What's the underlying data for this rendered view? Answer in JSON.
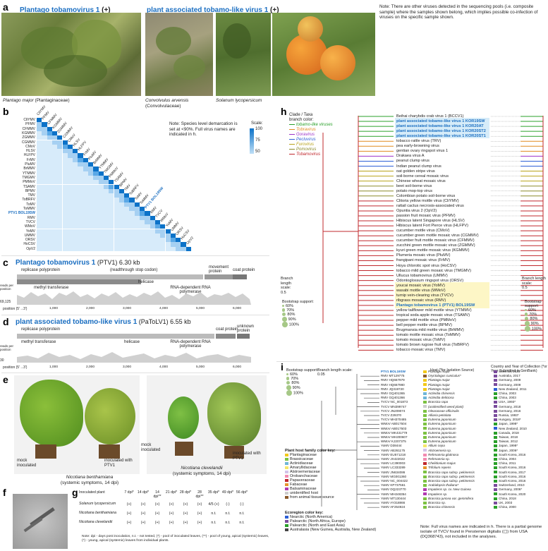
{
  "panel_a": {
    "label": "a",
    "left_title": "Plantago tobamovirus 1",
    "left_suffix": " (+)",
    "right_title": "plant associated tobamo-like virus 1",
    "right_suffix": " (+)",
    "note": "Note: There are other viruses detected in the sequencing pools (i.e. composite sample) where the samples shown belong, which implies possible co-infection of viruses on the specific sample shown.",
    "caption1_sp": "Plantago major",
    "caption1_fam": " (Plantaginaceae)",
    "caption2_sp": "Convolvulus arvensis",
    "caption2_fam": "(Convolvulaceae)",
    "caption3_sp": "Solanum lycopersicum"
  },
  "panel_b": {
    "label": "b",
    "note": "Note: Species level demarcation is set at <90%. Full virus names are indicated in h.",
    "scale_title": "Scale:",
    "scale_max": "100",
    "scale_mid": "75",
    "scale_min": "50",
    "rows": [
      "CliYMV",
      "PFMV",
      "CFMMV",
      "KGMMV",
      "ZGMMV",
      "CGMMV",
      "CMoV",
      "HLSV",
      "HLFPV",
      "FrMV",
      "PluMV",
      "BrMMV",
      "YTMMV",
      "TMGMV",
      "PMMoV",
      "TSAMV",
      "BPMV",
      "TMV",
      "ToBRFV",
      "ToMV",
      "ToMMV",
      "PTV1 BOL19SW",
      "RMV",
      "TVCV",
      "WMoV",
      "YoMV",
      "UMMV",
      "ORSV",
      "HoCSV",
      "OpV2"
    ]
  },
  "panel_c": {
    "label": "c",
    "title": "Plantago tobamovirus 1",
    "abbr": " (PTV1) 6.30 kb",
    "g1": "replicase polyprotein",
    "g2": "(readthrough stop codon)",
    "g3": "movement protein",
    "g4": "coat protein",
    "d1": "methyl transferase",
    "d2": "helicase",
    "d3": "RNA-dependent RNA polymerase",
    "y_label": "reads per position",
    "y_max": "69,125",
    "x_label": "position (5'→3')",
    "ticks": [
      "1,000",
      "2,000",
      "3,000",
      "4,000",
      "5,000",
      "6,000"
    ]
  },
  "panel_d": {
    "label": "d",
    "title": "plant associated tobamo-like virus 1",
    "abbr": " (PaToLV1) 6.55 kb",
    "g1": "replicase polyprotein",
    "d1": "methyl transferase",
    "d2": "helicase",
    "d3": "RNA-dependent RNA polymerase",
    "g3": "coat protein",
    "g4": "unknown protein",
    "y_label": "reads per position",
    "y_max": "30",
    "x_label": "position (5'→3')",
    "ticks": [
      "1,000",
      "2,000",
      "3,000",
      "4,000",
      "5,000",
      "6,000"
    ]
  },
  "panel_e": {
    "label": "e",
    "mock1": "mock inoculated",
    "inoc1": "inoculated with PTV1",
    "cap1_sp": "Nicotiana benthamiana",
    "cap1_sub": "(systemic symptoms, 14 dpi)",
    "mock2": "mock inoculated",
    "inoc2": "inoculated with PTV1",
    "cap2_sp": "Nicotiana clevelandii",
    "cap2_sub": "(systemic symptoms, 14 dpi)"
  },
  "panel_f": {
    "label": "f"
  },
  "panel_g": {
    "label": "g",
    "header": [
      "Inoculated plant",
      "7 dpi*",
      "14 dpi*",
      "14 dpi**",
      "21 dpi*",
      "28 dpi*",
      "28 dpi**",
      "35 dpi*",
      "49 dpi*",
      "56 dpi*"
    ],
    "rows": [
      {
        "plant": "Solanum lycopersicum",
        "vals": [
          "(+)",
          "(+)",
          "(+)",
          "(+)",
          "(+)",
          "(+)",
          "4/5 (+)",
          "(-)",
          "(-)"
        ]
      },
      {
        "plant": "Nicotiana benthamiana",
        "vals": [
          "(+)",
          "(+)",
          "(+)",
          "(+)",
          "(+)",
          "(+)",
          "n.t.",
          "n.t.",
          "n.t."
        ]
      },
      {
        "plant": "Nicotiana clevelandii",
        "vals": [
          "(+)",
          "(+)",
          "(+)",
          "(+)",
          "(+)",
          "(+)",
          "n.t.",
          "n.t.",
          "n.t."
        ]
      }
    ],
    "note": "Note: dpi - days post inoculation, n.t. - not tested, (*) - pool of inoculated leaves, (**) - pool of young, apical (systemic) leaves, (*) - young, apical (systemic) leaves from individual plants."
  },
  "panel_h": {
    "label": "h",
    "clade_title": "Clade / Taxa",
    "clade_sub": "branch color:",
    "clades": [
      {
        "name": "tobamo-like viruses",
        "color": "#2aa02a"
      },
      {
        "name": "Tobravirus",
        "color": "#e08a1e"
      },
      {
        "name": "Goravirus",
        "color": "#9b30c8"
      },
      {
        "name": "Pecluvirus",
        "color": "#2c5fd6"
      },
      {
        "name": "Furovirus",
        "color": "#b7a21a"
      },
      {
        "name": "Pomovirus",
        "color": "#8a8a2a"
      },
      {
        "name": "Tobamovirus",
        "color": "#c0282d"
      }
    ],
    "taxa": [
      "Beihai charybdis crab virus 1 (BCCV1)",
      "plant associated tobamo-like virus 1 KOR19SW",
      "plant associated tobamo-like virus 1 KOR20AT",
      "plant associated tobamo-like virus 1 KOR20ST2",
      "plant associated tobamo-like virus 1 KOR20ST1",
      "tobacco rattle virus (TRV)",
      "pea early-browning virus",
      "gentian ovary ringspot virus 1",
      "Drakaea virus A",
      "peanut clump virus",
      "Indian peanut clump virus",
      "oat golden stripe virus",
      "soil-borne cereal mosaic virus",
      "Chinese wheat mosaic virus",
      "beet soil-borne virus",
      "potato mop-top virus",
      "Colombian potato soil-borne virus",
      "Clitoria yellow mottle virus (CliYMV)",
      "rattail cactus necrosis-associated virus",
      "Opuntia virus 2 (OpV2)",
      "passion fruit mosaic virus (PFMV)",
      "Hibiscus latent Singapore virus (HLSV)",
      "Hibiscus latent Fort Pierce virus (HLFPV)",
      "cucumber mottle virus (CMoV)",
      "cucumber green mottle mosaic virus (CGMMV)",
      "cucumber fruit mottle mosaic virus (CFMMV)",
      "zucchini green mottle mosaic virus (ZGMMV)",
      "kyuri green mottle mosaic virus (KGMMV)",
      "Plumeria mosaic virus (PluMV)",
      "frangipani mosaic virus (FrMV)",
      "Hoya chlorotic spot virus (HoCSV)",
      "tobacco mild green mosaic virus (TMGMV)",
      "Ullucus tobamovirus (UMMV)",
      "Odontoglossum ringspot virus (ORSV)",
      "youcai mosaic virus (YoMV)",
      "wasabi mottle virus (WMoV)",
      "turnip vein-clearing virus (TVCV)",
      "ribgrass mosaic virus (RMV)",
      "Plantago tobamovirus 1 (PTV1) BOL19SW",
      "yellow tailflower mild mottle virus (YTMMV)",
      "tropical soda apple mosaic virus (TSAMV)",
      "pepper mild mottle virus (PMMoV)",
      "bell pepper mottle virus (BPMV)",
      "Brugmansia mild mottle virus (BrMMV)",
      "tomato mottle mosaic virus (ToMMV)",
      "tomato mosaic virus (ToMV)",
      "tomato brown rugose fruit virus (ToBRFV)",
      "tobacco mosaic virus (TMV)"
    ],
    "branch_length_left": "Branch length scale:",
    "branch_length_val": "0.5",
    "branch_length_right": "Branch length scale:",
    "bootstrap_title": "Bootstrap support:",
    "bootstrap": [
      "60%",
      "70%",
      "80%",
      "90%",
      "100%"
    ]
  },
  "panel_i": {
    "label": "i",
    "bootstrap_title": "Bootstrap support:",
    "bootstrap": [
      "60%",
      "70%",
      "80%",
      "90%",
      "100%"
    ],
    "branch_title": "Branch length scale:",
    "branch_val": "0.05",
    "host_header": "Host (*for Isolation Source)",
    "country_header": "Country and Year of Collection (*or Year Submitted in GenBank)",
    "rows": [
      {
        "acc": "PTV1 BOL19SW",
        "host": "Plantago major",
        "hc": "#f2c81a",
        "country": "Slovenia, 2020",
        "cc": "#7a4b9c"
      },
      {
        "acc": "RMV MT129775",
        "host": "Oryctolagus cuniculus*",
        "hc": "#8b5a2b",
        "country": "Australia, 2017",
        "cc": "#7a4b9c"
      },
      {
        "acc": "RMV HQ667979",
        "host": "Plantago major",
        "hc": "#f2c81a",
        "country": "Germany, 2009",
        "cc": "#7a4b9c"
      },
      {
        "acc": "RMV HQ667980",
        "host": "Plantago major",
        "hc": "#f2c81a",
        "country": "Germany, 2009",
        "cc": "#7a4b9c"
      },
      {
        "acc": "RMV JQ319720",
        "host": "Plantago major",
        "hc": "#f2c81a",
        "country": "New Zealand, 2011",
        "cc": "#2c5fd6"
      },
      {
        "acc": "RMV GQ401365",
        "host": "Actinidia chinensis",
        "hc": "#6fb6d8",
        "country": "China, 2003",
        "cc": "#2aa02a"
      },
      {
        "acc": "RMV GQ401366",
        "host": "Actinidia deliciosa",
        "hc": "#6fb6d8",
        "country": "China, 2003",
        "cc": "#2aa02a"
      },
      {
        "acc": "TVCV NC_001873",
        "host": "Brassica rapa",
        "hc": "#7cc242",
        "country": "USA, 1993*",
        "cc": "#7a4b9c"
      },
      {
        "acc": "TVCV MN399747",
        "host": "(unidentified weed plant)",
        "hc": "#cccccc",
        "country": "Germany, 2018",
        "cc": "#7a4b9c"
      },
      {
        "acc": "TVCV JN209074",
        "host": "Olearaceae officinalis",
        "hc": "#7cc242",
        "country": "Germany, 2016",
        "cc": "#7a4b9c"
      },
      {
        "acc": "TVCV Z29370",
        "host": "Alliaria petiolata",
        "hc": "#7cc242",
        "country": "Russia, 1993*",
        "cc": "#7a4b9c"
      },
      {
        "acc": "TVCV MH370485",
        "host": "Eutrema japonicum",
        "hc": "#7cc242",
        "country": "Hungary, 2018*",
        "cc": "#7a4b9c"
      },
      {
        "acc": "WMoV AB017504",
        "host": "Eutrema japonicum",
        "hc": "#7cc242",
        "country": "Japan, 1998*",
        "cc": "#2aa02a"
      },
      {
        "acc": "WMoV AB017503",
        "host": "Eutrema japonicum",
        "hc": "#7cc242",
        "country": "New Zealand, 2010",
        "cc": "#2c5fd6"
      },
      {
        "acc": "WMoV MK431779",
        "host": "Eutrema japonicum",
        "hc": "#7cc242",
        "country": "Canada, 2018",
        "cc": "#2aa02a"
      },
      {
        "acc": "WMoV MH200607",
        "host": "Eutrema japonicum",
        "hc": "#7cc242",
        "country": "Taiwan, 2018",
        "cc": "#2aa02a"
      },
      {
        "acc": "WMoV KJ207375",
        "host": "Eutrema japonicum",
        "hc": "#7cc242",
        "country": "Taiwan, 2012",
        "cc": "#2aa02a"
      },
      {
        "acc": "YoMV D38444",
        "host": "Allium cepa",
        "hc": "#f5e66a",
        "country": "Japan, 1998*",
        "cc": "#2aa02a"
      },
      {
        "acc": "YoMV AB261175",
        "host": "Alstroemeria sp.",
        "hc": "#d2c3e8",
        "country": "Japan, 2006*",
        "cc": "#2aa02a"
      },
      {
        "acc": "YoMV EU571218",
        "host": "Rehmannia glutinosa",
        "hc": "#f28bb1",
        "country": "South Korea, 2016",
        "cc": "#2aa02a"
      },
      {
        "acc": "YoMV JX422022",
        "host": "Rehmannia sp.",
        "hc": "#f28bb1",
        "country": "China, 2004",
        "cc": "#2aa02a"
      },
      {
        "acc": "YoMV LC390003",
        "host": "Chelidonium majus",
        "hc": "#c0282d",
        "country": "China, 2011",
        "cc": "#2aa02a"
      },
      {
        "acc": "YoMV LC333289",
        "host": "Trifolium repens",
        "hc": "#e6962c",
        "country": "South Korea, 2016",
        "cc": "#2aa02a"
      },
      {
        "acc": "YoMV JN634086",
        "host": "Brassica rapa subsp. pekinensis",
        "hc": "#7cc242",
        "country": "South Korea, 2017",
        "cc": "#2aa02a"
      },
      {
        "acc": "YoMV MG001360",
        "host": "Brassica rapa subsp. pekinensis",
        "hc": "#7cc242",
        "country": "South Korea, 2016",
        "cc": "#2aa02a"
      },
      {
        "acc": "YoMV NC_004422",
        "host": "Brassica rapa subsp. pekinensis",
        "hc": "#7cc242",
        "country": "South Korea, 2016",
        "cc": "#2aa02a"
      },
      {
        "acc": "YoMV KP737561",
        "host": "Arabidopsis thaliana*",
        "hc": "#7cc242",
        "country": "Switzerland, 2010",
        "cc": "#7a4b9c"
      },
      {
        "acc": "YoMV DQ223770",
        "host": "Impatiens sp. cv. New Guinea",
        "hc": "#b23ab0",
        "country": "Germany, 2006*",
        "cc": "#7a4b9c"
      },
      {
        "acc": "YoMV MH248354",
        "host": "Impatiens sp.",
        "hc": "#b23ab0",
        "country": "South Korea, 2020",
        "cc": "#2aa02a"
      },
      {
        "acc": "YoMV MT130444",
        "host": "Brassica juncea var. gemmifera",
        "hc": "#7cc242",
        "country": "China, 2018",
        "cc": "#2aa02a"
      },
      {
        "acc": "YoMV AY318866",
        "host": "Brassica sp.",
        "hc": "#7cc242",
        "country": "UK, 2003",
        "cc": "#7a4b9c"
      },
      {
        "acc": "YoMV AF254924",
        "host": "Brassica chinensis",
        "hc": "#7cc242",
        "country": "China, 2000",
        "cc": "#2aa02a"
      }
    ],
    "host_key_title": "Plant host family color key:",
    "host_key": [
      {
        "name": "Plantaginaceae",
        "color": "#f2c81a"
      },
      {
        "name": "Brassicaceae",
        "color": "#7cc242"
      },
      {
        "name": "Actinidiaceae",
        "color": "#6fb6d8"
      },
      {
        "name": "Amaryllidaceae",
        "color": "#f5e66a"
      },
      {
        "name": "Alstroemeriaceae",
        "color": "#d2c3e8"
      },
      {
        "name": "Orobanchaceae",
        "color": "#f28bb1"
      },
      {
        "name": "Papaveraceae",
        "color": "#c0282d"
      },
      {
        "name": "Fabaceae",
        "color": "#e6962c"
      },
      {
        "name": "Balsaminaceae",
        "color": "#b23ab0"
      },
      {
        "name": "unidentified host",
        "color": "#cccccc"
      },
      {
        "name": "from animal tissue source",
        "color": "#8b5a2b"
      }
    ],
    "eco_key_title": "Ecoregion color key:",
    "eco_key": [
      {
        "name": "Nearctic (North America)",
        "color": "#2c5fd6"
      },
      {
        "name": "Palearctic (North Africa, Europe)",
        "color": "#7a4b9c"
      },
      {
        "name": "Palearctic (North and East Asia)",
        "color": "#2aa02a"
      },
      {
        "name": "Australasia (New Guinea, Australia, New Zealand)",
        "color": "#444444"
      }
    ],
    "footnote": "Note: Full virus names are indicated in h. There is a partial genome isolate of TVCV found in Penstemon digitalis (▢) from USA (DQ368743), not included in the analyses."
  }
}
